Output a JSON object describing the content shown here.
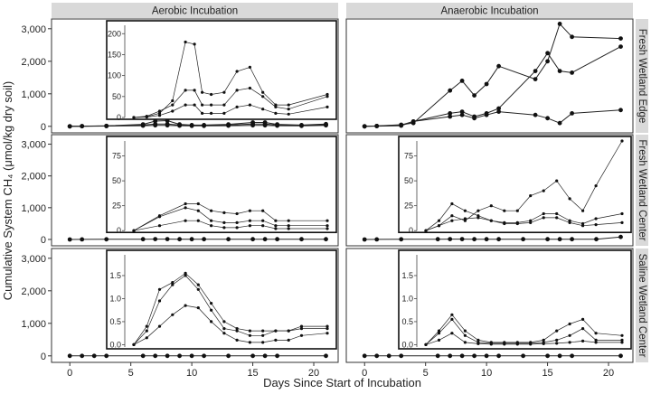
{
  "chart_data": {
    "type": "line",
    "xlabel": "Days Since Start of Incubation",
    "ylabel": "Cumulative System CH₄ (μmol/kg dry soil)",
    "columns": [
      "Aerobic Incubation",
      "Anaerobic Incubation"
    ],
    "rows": [
      "Fresh Wetland Edge",
      "Fresh Wetland Center",
      "Saline Wetland Center"
    ],
    "x": [
      0,
      1,
      3,
      6,
      7,
      8,
      9,
      10,
      11,
      13,
      15,
      16,
      17,
      19,
      21
    ],
    "x_ticks": [
      0,
      5,
      10,
      15,
      20
    ],
    "y_ticks": [
      0,
      1000,
      2000,
      3000
    ],
    "y_tick_labels": [
      "0",
      "1,000",
      "2,000",
      "3,000"
    ],
    "xlim": [
      -1.5,
      22
    ],
    "ylim": [
      -200,
      3300
    ],
    "panels": [
      {
        "row": 0,
        "col": 0,
        "series": [
          {
            "x": [
              0,
              1,
              3,
              6,
              7,
              8,
              9,
              10,
              11,
              13,
              15,
              16,
              17,
              19,
              21
            ],
            "values": [
              0,
              5,
              15,
              60,
              160,
              175,
              60,
              40,
              40,
              60,
              120,
              120,
              60,
              40,
              70
            ]
          },
          {
            "x": [
              0,
              1,
              3,
              6,
              7,
              8,
              9,
              10,
              11,
              13,
              15,
              16,
              17,
              19,
              21
            ],
            "values": [
              0,
              5,
              10,
              40,
              70,
              70,
              40,
              30,
              30,
              40,
              70,
              70,
              40,
              30,
              50
            ]
          },
          {
            "x": [
              0,
              1,
              3,
              6,
              7,
              8,
              9,
              10,
              11,
              13,
              15,
              16,
              17,
              19,
              21
            ],
            "values": [
              0,
              3,
              8,
              20,
              30,
              30,
              20,
              15,
              15,
              20,
              30,
              30,
              20,
              15,
              30
            ]
          }
        ],
        "inset": {
          "x_range": [
            6,
            21
          ],
          "ylim": [
            0,
            220
          ],
          "y_ticks": [
            0,
            50,
            100,
            150,
            200
          ],
          "series": [
            {
              "x": [
                6,
                7,
                8,
                9,
                10,
                10.7,
                11.3,
                12,
                13,
                14,
                15,
                16,
                17,
                18,
                21
              ],
              "values": [
                0,
                2,
                10,
                40,
                180,
                175,
                60,
                55,
                60,
                110,
                120,
                60,
                30,
                30,
                55
              ]
            },
            {
              "x": [
                6,
                7,
                8,
                9,
                10,
                10.7,
                11.3,
                12,
                13,
                14,
                15,
                16,
                17,
                18,
                21
              ],
              "values": [
                0,
                3,
                15,
                30,
                65,
                65,
                30,
                30,
                30,
                65,
                70,
                50,
                25,
                20,
                50
              ]
            },
            {
              "x": [
                6,
                7,
                8,
                9,
                10,
                10.7,
                11.3,
                12,
                13,
                14,
                15,
                16,
                17,
                18,
                21
              ],
              "values": [
                0,
                1,
                5,
                15,
                30,
                30,
                10,
                10,
                10,
                25,
                30,
                20,
                10,
                8,
                25
              ]
            }
          ]
        }
      },
      {
        "row": 0,
        "col": 1,
        "series": [
          {
            "x": [
              0,
              1,
              3,
              4,
              7,
              8,
              9,
              10,
              11,
              14,
              15,
              16,
              17,
              21
            ],
            "values": [
              0,
              10,
              50,
              100,
              1100,
              1400,
              950,
              1300,
              1850,
              1450,
              2000,
              3150,
              2750,
              2700
            ]
          },
          {
            "x": [
              0,
              1,
              3,
              4,
              7,
              8,
              9,
              10,
              11,
              14,
              15,
              16,
              17,
              21
            ],
            "values": [
              0,
              10,
              40,
              150,
              400,
              450,
              300,
              400,
              550,
              1700,
              2250,
              1700,
              1650,
              2450
            ]
          },
          {
            "x": [
              0,
              1,
              3,
              4,
              7,
              8,
              9,
              10,
              11,
              14,
              15,
              16,
              17,
              21
            ],
            "values": [
              0,
              5,
              20,
              150,
              300,
              350,
              250,
              350,
              450,
              350,
              250,
              100,
              400,
              500
            ]
          }
        ]
      },
      {
        "row": 1,
        "col": 0,
        "series": [
          {
            "x": [
              0,
              1,
              3,
              6,
              7,
              8,
              9,
              10,
              11,
              13,
              15,
              16,
              17,
              19,
              21
            ],
            "values": [
              0,
              3,
              5,
              8,
              10,
              10,
              8,
              8,
              8,
              8,
              8,
              8,
              8,
              8,
              8
            ]
          }
        ],
        "inset": {
          "x_range": [
            6,
            21
          ],
          "ylim": [
            0,
            90
          ],
          "y_ticks": [
            0,
            25,
            50,
            75
          ],
          "series": [
            {
              "x": [
                6,
                8,
                10,
                11,
                12,
                13,
                14,
                15,
                16,
                17,
                18,
                21
              ],
              "values": [
                0,
                15,
                27,
                27,
                20,
                18,
                17,
                20,
                20,
                10,
                10,
                10
              ]
            },
            {
              "x": [
                6,
                8,
                10,
                11,
                12,
                13,
                14,
                15,
                16,
                17,
                18,
                21
              ],
              "values": [
                0,
                14,
                23,
                20,
                10,
                8,
                8,
                10,
                10,
                5,
                5,
                5
              ]
            },
            {
              "x": [
                6,
                8,
                10,
                11,
                12,
                13,
                14,
                15,
                16,
                17,
                18,
                21
              ],
              "values": [
                0,
                5,
                10,
                10,
                5,
                3,
                3,
                5,
                5,
                2,
                2,
                2
              ]
            }
          ]
        }
      },
      {
        "row": 1,
        "col": 1,
        "series": [
          {
            "x": [
              0,
              1,
              3,
              6,
              7,
              8,
              9,
              10,
              11,
              13,
              15,
              16,
              17,
              19,
              21
            ],
            "values": [
              0,
              3,
              5,
              8,
              10,
              10,
              8,
              8,
              8,
              8,
              8,
              8,
              8,
              8,
              80
            ]
          }
        ],
        "inset": {
          "x_range": [
            6,
            21
          ],
          "ylim": [
            0,
            90
          ],
          "y_ticks": [
            0,
            25,
            50,
            75
          ],
          "series": [
            {
              "x": [
                6,
                7,
                8,
                9,
                10,
                11,
                12,
                13,
                14,
                15,
                16,
                17,
                18,
                19,
                21
              ],
              "values": [
                0,
                5,
                15,
                10,
                20,
                25,
                20,
                20,
                35,
                40,
                50,
                32,
                20,
                45,
                90
              ]
            },
            {
              "x": [
                6,
                7,
                8,
                9,
                10,
                11,
                12,
                13,
                14,
                15,
                16,
                17,
                18,
                19,
                21
              ],
              "values": [
                0,
                10,
                27,
                20,
                15,
                10,
                8,
                8,
                10,
                17,
                17,
                10,
                7,
                12,
                17
              ]
            },
            {
              "x": [
                6,
                7,
                8,
                9,
                10,
                11,
                12,
                13,
                14,
                15,
                16,
                17,
                18,
                19,
                21
              ],
              "values": [
                0,
                5,
                10,
                12,
                13,
                10,
                7,
                7,
                8,
                13,
                13,
                8,
                5,
                6,
                8
              ]
            }
          ]
        }
      },
      {
        "row": 2,
        "col": 0,
        "series": [
          {
            "x": [
              0,
              1,
              2,
              3,
              6,
              7,
              8,
              9,
              10,
              11,
              13,
              15,
              16,
              17,
              21
            ],
            "values": [
              0,
              0,
              0,
              0,
              0,
              0,
              0,
              0,
              0,
              0,
              0,
              0,
              0,
              0,
              0
            ]
          }
        ],
        "inset": {
          "x_range": [
            6,
            21
          ],
          "ylim": [
            -0.05,
            1.95
          ],
          "y_ticks": [
            0,
            0.5,
            1.0,
            1.5
          ],
          "series": [
            {
              "x": [
                6,
                7,
                8,
                9,
                10,
                11,
                12,
                13,
                14,
                15,
                16,
                17,
                18,
                19,
                21
              ],
              "values": [
                0,
                0.4,
                1.2,
                1.35,
                1.55,
                1.3,
                0.9,
                0.5,
                0.35,
                0.3,
                0.3,
                0.3,
                0.3,
                0.4,
                0.4
              ]
            },
            {
              "x": [
                6,
                7,
                8,
                9,
                10,
                11,
                12,
                13,
                14,
                15,
                16,
                17,
                18,
                19,
                21
              ],
              "values": [
                0,
                0.3,
                0.95,
                1.3,
                1.5,
                1.2,
                0.75,
                0.35,
                0.3,
                0.2,
                0.2,
                0.3,
                0.3,
                0.35,
                0.35
              ]
            },
            {
              "x": [
                6,
                7,
                8,
                9,
                10,
                11,
                12,
                13,
                14,
                15,
                16,
                17,
                18,
                19,
                21
              ],
              "values": [
                0,
                0.15,
                0.4,
                0.65,
                0.85,
                0.8,
                0.5,
                0.25,
                0.1,
                0.05,
                0.05,
                0.1,
                0.1,
                0.2,
                0.25
              ]
            }
          ]
        }
      },
      {
        "row": 2,
        "col": 1,
        "series": [
          {
            "x": [
              0,
              1,
              2,
              3,
              6,
              7,
              8,
              9,
              10,
              11,
              13,
              15,
              16,
              17,
              21
            ],
            "values": [
              0,
              0,
              0,
              0,
              0,
              0,
              0,
              0,
              0,
              0,
              0,
              0,
              0,
              0,
              0
            ]
          }
        ],
        "inset": {
          "x_range": [
            6,
            21
          ],
          "ylim": [
            -0.05,
            1.95
          ],
          "y_ticks": [
            0,
            0.5,
            1.0,
            1.5
          ],
          "series": [
            {
              "x": [
                6,
                7,
                8,
                9,
                10,
                11,
                12,
                13,
                14,
                15,
                16,
                17,
                18,
                19,
                21
              ],
              "values": [
                0,
                0.3,
                0.65,
                0.3,
                0.1,
                0.05,
                0.05,
                0.05,
                0.05,
                0.1,
                0.3,
                0.45,
                0.55,
                0.25,
                0.2
              ]
            },
            {
              "x": [
                6,
                7,
                8,
                9,
                10,
                11,
                12,
                13,
                14,
                15,
                16,
                17,
                18,
                19,
                21
              ],
              "values": [
                0,
                0.25,
                0.55,
                0.2,
                0.05,
                0.03,
                0.03,
                0.03,
                0.03,
                0.05,
                0.1,
                0.2,
                0.35,
                0.1,
                0.1
              ]
            },
            {
              "x": [
                6,
                7,
                8,
                9,
                10,
                11,
                12,
                13,
                14,
                15,
                16,
                17,
                18,
                19,
                21
              ],
              "values": [
                0,
                0.1,
                0.25,
                0.05,
                0.02,
                0.01,
                0.01,
                0.01,
                0.01,
                0.02,
                0.03,
                0.05,
                0.08,
                0.05,
                0.05
              ]
            }
          ]
        }
      }
    ]
  }
}
